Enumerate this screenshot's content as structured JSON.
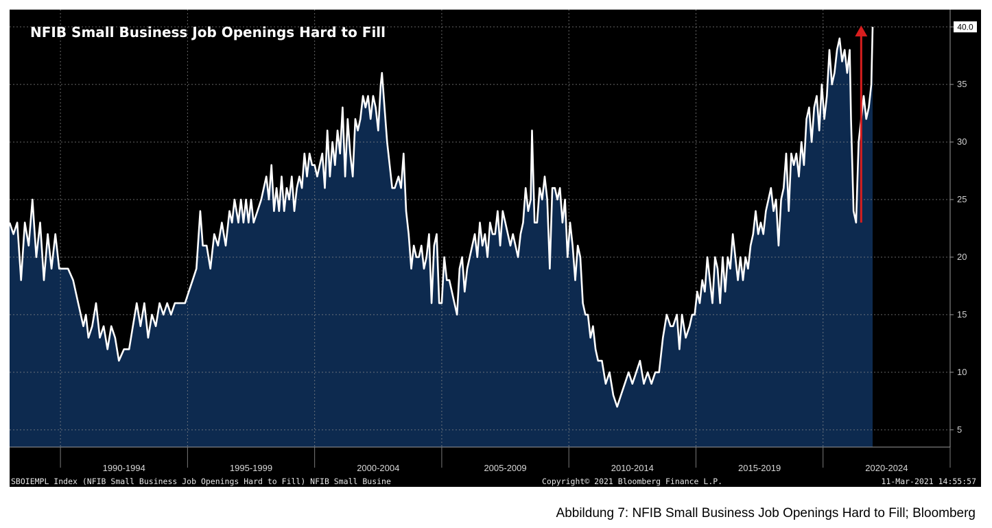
{
  "caption": "Abbildung 7: NFIB Small Business Job Openings Hard to Fill; Bloomberg",
  "footer": {
    "left": "SBOIEMPL Index (NFIB Small Business Job Openings Hard to Fill) NFIB Small Busine",
    "center": "Copyright© 2021 Bloomberg Finance L.P.",
    "right": "11-Mar-2021 14:55:57"
  },
  "colors": {
    "plot_background": "#000000",
    "area_fill": "#0d2a4f",
    "line": "#ffffff",
    "grid": "#8a8a8a",
    "arrow": "#d81e1e",
    "last_value_badge": "#ffffff"
  },
  "chart_data": {
    "type": "area",
    "title": "NFIB Small Business Job Openings Hard to Fill",
    "xlabel": "",
    "ylabel": "",
    "ylim": [
      3.5,
      41.5
    ],
    "xlim": [
      1988.0,
      2025.0
    ],
    "yticks": [
      5,
      10,
      15,
      20,
      25,
      30,
      35,
      40
    ],
    "ytick_labels": [
      "5",
      "10",
      "15",
      "20",
      "25",
      "30",
      "35",
      ""
    ],
    "x_period_labels": [
      {
        "label": "1990-1994",
        "center": 1992.5
      },
      {
        "label": "1995-1999",
        "center": 1997.5
      },
      {
        "label": "2000-2004",
        "center": 2002.5
      },
      {
        "label": "2005-2009",
        "center": 2007.5
      },
      {
        "label": "2010-2014",
        "center": 2012.5
      },
      {
        "label": "2015-2019",
        "center": 2017.5
      },
      {
        "label": "2020-2024",
        "center": 2022.5
      }
    ],
    "x_period_boundaries": [
      1990,
      1995,
      2000,
      2005,
      2010,
      2015,
      2020,
      2025
    ],
    "grid": true,
    "last_value_label": "40.0",
    "annotation": {
      "type": "arrow",
      "x": 2021.5,
      "y_from": 23,
      "y_to": 40
    },
    "series": [
      {
        "values": [
          [
            1988.0,
            23
          ],
          [
            1988.15,
            22
          ],
          [
            1988.3,
            23
          ],
          [
            1988.45,
            18
          ],
          [
            1988.6,
            23
          ],
          [
            1988.75,
            21
          ],
          [
            1988.9,
            25
          ],
          [
            1989.05,
            20
          ],
          [
            1989.2,
            23
          ],
          [
            1989.35,
            18
          ],
          [
            1989.5,
            22
          ],
          [
            1989.65,
            19
          ],
          [
            1989.8,
            22
          ],
          [
            1989.95,
            19
          ],
          [
            1990.1,
            19
          ],
          [
            1990.3,
            19
          ],
          [
            1990.5,
            18
          ],
          [
            1990.7,
            16
          ],
          [
            1990.9,
            14
          ],
          [
            1991.0,
            15
          ],
          [
            1991.1,
            13
          ],
          [
            1991.25,
            14
          ],
          [
            1991.4,
            16
          ],
          [
            1991.55,
            13
          ],
          [
            1991.7,
            14
          ],
          [
            1991.85,
            12
          ],
          [
            1992.0,
            14
          ],
          [
            1992.15,
            13
          ],
          [
            1992.3,
            11
          ],
          [
            1992.5,
            12
          ],
          [
            1992.7,
            12
          ],
          [
            1992.85,
            14
          ],
          [
            1993.0,
            16
          ],
          [
            1993.15,
            14
          ],
          [
            1993.3,
            16
          ],
          [
            1993.45,
            13
          ],
          [
            1993.6,
            15
          ],
          [
            1993.75,
            14
          ],
          [
            1993.9,
            16
          ],
          [
            1994.05,
            15
          ],
          [
            1994.2,
            16
          ],
          [
            1994.35,
            15
          ],
          [
            1994.5,
            16
          ],
          [
            1994.7,
            16
          ],
          [
            1994.9,
            16
          ],
          [
            1995.05,
            17
          ],
          [
            1995.2,
            18
          ],
          [
            1995.35,
            19
          ],
          [
            1995.5,
            24
          ],
          [
            1995.6,
            21
          ],
          [
            1995.75,
            21
          ],
          [
            1995.9,
            19
          ],
          [
            1996.05,
            22
          ],
          [
            1996.2,
            21
          ],
          [
            1996.35,
            23
          ],
          [
            1996.5,
            21
          ],
          [
            1996.65,
            24
          ],
          [
            1996.75,
            23
          ],
          [
            1996.85,
            25
          ],
          [
            1997.0,
            23
          ],
          [
            1997.1,
            25
          ],
          [
            1997.2,
            23
          ],
          [
            1997.3,
            25
          ],
          [
            1997.4,
            23
          ],
          [
            1997.5,
            25
          ],
          [
            1997.6,
            23
          ],
          [
            1997.75,
            24
          ],
          [
            1997.9,
            25
          ],
          [
            1998.0,
            26
          ],
          [
            1998.1,
            27
          ],
          [
            1998.2,
            25
          ],
          [
            1998.3,
            28
          ],
          [
            1998.4,
            24
          ],
          [
            1998.5,
            26
          ],
          [
            1998.6,
            24
          ],
          [
            1998.7,
            27
          ],
          [
            1998.8,
            24
          ],
          [
            1998.9,
            26
          ],
          [
            1999.0,
            25
          ],
          [
            1999.1,
            27
          ],
          [
            1999.2,
            24
          ],
          [
            1999.3,
            26
          ],
          [
            1999.4,
            27
          ],
          [
            1999.5,
            26
          ],
          [
            1999.6,
            29
          ],
          [
            1999.7,
            27
          ],
          [
            1999.8,
            29
          ],
          [
            1999.9,
            28
          ],
          [
            2000.0,
            28
          ],
          [
            2000.1,
            27
          ],
          [
            2000.2,
            28
          ],
          [
            2000.3,
            29
          ],
          [
            2000.4,
            26
          ],
          [
            2000.5,
            31
          ],
          [
            2000.6,
            27
          ],
          [
            2000.7,
            30
          ],
          [
            2000.8,
            28
          ],
          [
            2000.9,
            31
          ],
          [
            2001.0,
            29
          ],
          [
            2001.1,
            33
          ],
          [
            2001.2,
            27
          ],
          [
            2001.3,
            32
          ],
          [
            2001.4,
            29
          ],
          [
            2001.5,
            27
          ],
          [
            2001.6,
            32
          ],
          [
            2001.7,
            31
          ],
          [
            2001.8,
            32
          ],
          [
            2001.9,
            34
          ],
          [
            2002.0,
            33
          ],
          [
            2002.1,
            34
          ],
          [
            2002.2,
            32
          ],
          [
            2002.3,
            34
          ],
          [
            2002.4,
            33
          ],
          [
            2002.5,
            31
          ],
          [
            2002.6,
            35
          ],
          [
            2002.65,
            36
          ],
          [
            2002.75,
            33
          ],
          [
            2002.85,
            30
          ],
          [
            2002.95,
            28
          ],
          [
            2003.05,
            26
          ],
          [
            2003.15,
            26
          ],
          [
            2003.3,
            27
          ],
          [
            2003.4,
            26
          ],
          [
            2003.5,
            29
          ],
          [
            2003.6,
            24
          ],
          [
            2003.7,
            22
          ],
          [
            2003.8,
            19
          ],
          [
            2003.9,
            21
          ],
          [
            2004.0,
            20
          ],
          [
            2004.1,
            20
          ],
          [
            2004.2,
            21
          ],
          [
            2004.3,
            19
          ],
          [
            2004.4,
            20
          ],
          [
            2004.5,
            22
          ],
          [
            2004.6,
            16
          ],
          [
            2004.7,
            21
          ],
          [
            2004.8,
            22
          ],
          [
            2004.9,
            16
          ],
          [
            2005.0,
            16
          ],
          [
            2005.1,
            20
          ],
          [
            2005.2,
            18
          ],
          [
            2005.3,
            18
          ],
          [
            2005.4,
            17
          ],
          [
            2005.5,
            16
          ],
          [
            2005.6,
            15
          ],
          [
            2005.7,
            19
          ],
          [
            2005.8,
            20
          ],
          [
            2005.9,
            17
          ],
          [
            2006.0,
            19
          ],
          [
            2006.1,
            20
          ],
          [
            2006.2,
            21
          ],
          [
            2006.3,
            22
          ],
          [
            2006.4,
            20
          ],
          [
            2006.5,
            23
          ],
          [
            2006.6,
            21
          ],
          [
            2006.7,
            22
          ],
          [
            2006.8,
            20
          ],
          [
            2006.9,
            23
          ],
          [
            2007.0,
            22
          ],
          [
            2007.1,
            22
          ],
          [
            2007.2,
            24
          ],
          [
            2007.3,
            21
          ],
          [
            2007.4,
            24
          ],
          [
            2007.5,
            23
          ],
          [
            2007.6,
            22
          ],
          [
            2007.7,
            21
          ],
          [
            2007.8,
            22
          ],
          [
            2007.9,
            21
          ],
          [
            2008.0,
            20
          ],
          [
            2008.1,
            22
          ],
          [
            2008.2,
            23
          ],
          [
            2008.3,
            26
          ],
          [
            2008.4,
            24
          ],
          [
            2008.5,
            25
          ],
          [
            2008.55,
            31
          ],
          [
            2008.65,
            23
          ],
          [
            2008.75,
            23
          ],
          [
            2008.85,
            26
          ],
          [
            2008.95,
            25
          ],
          [
            2009.05,
            27
          ],
          [
            2009.15,
            25
          ],
          [
            2009.25,
            19
          ],
          [
            2009.35,
            26
          ],
          [
            2009.45,
            26
          ],
          [
            2009.55,
            25
          ],
          [
            2009.65,
            26
          ],
          [
            2009.75,
            23
          ],
          [
            2009.85,
            25
          ],
          [
            2009.95,
            20
          ],
          [
            2010.05,
            23
          ],
          [
            2010.15,
            21
          ],
          [
            2010.25,
            18
          ],
          [
            2010.35,
            21
          ],
          [
            2010.45,
            20
          ],
          [
            2010.55,
            16
          ],
          [
            2010.65,
            15
          ],
          [
            2010.75,
            15
          ],
          [
            2010.85,
            13
          ],
          [
            2010.95,
            14
          ],
          [
            2011.05,
            12
          ],
          [
            2011.15,
            11
          ],
          [
            2011.3,
            11
          ],
          [
            2011.45,
            9
          ],
          [
            2011.6,
            10
          ],
          [
            2011.75,
            8
          ],
          [
            2011.9,
            7
          ],
          [
            2012.05,
            8
          ],
          [
            2012.2,
            9
          ],
          [
            2012.35,
            10
          ],
          [
            2012.5,
            9
          ],
          [
            2012.65,
            10
          ],
          [
            2012.8,
            11
          ],
          [
            2012.95,
            9
          ],
          [
            2013.1,
            10
          ],
          [
            2013.25,
            9
          ],
          [
            2013.4,
            10
          ],
          [
            2013.55,
            10
          ],
          [
            2013.7,
            13
          ],
          [
            2013.85,
            15
          ],
          [
            2014.0,
            14
          ],
          [
            2014.1,
            14
          ],
          [
            2014.25,
            15
          ],
          [
            2014.35,
            12
          ],
          [
            2014.45,
            15
          ],
          [
            2014.6,
            13
          ],
          [
            2014.75,
            14
          ],
          [
            2014.85,
            15
          ],
          [
            2014.95,
            15
          ],
          [
            2015.05,
            17
          ],
          [
            2015.15,
            16
          ],
          [
            2015.25,
            18
          ],
          [
            2015.35,
            17
          ],
          [
            2015.45,
            20
          ],
          [
            2015.55,
            18
          ],
          [
            2015.65,
            16
          ],
          [
            2015.75,
            20
          ],
          [
            2015.85,
            19
          ],
          [
            2015.95,
            16
          ],
          [
            2016.05,
            20
          ],
          [
            2016.15,
            17
          ],
          [
            2016.25,
            20
          ],
          [
            2016.35,
            19
          ],
          [
            2016.45,
            22
          ],
          [
            2016.55,
            20
          ],
          [
            2016.65,
            18
          ],
          [
            2016.75,
            20
          ],
          [
            2016.85,
            18
          ],
          [
            2016.95,
            20
          ],
          [
            2017.05,
            19
          ],
          [
            2017.15,
            21
          ],
          [
            2017.25,
            22
          ],
          [
            2017.35,
            24
          ],
          [
            2017.45,
            22
          ],
          [
            2017.55,
            23
          ],
          [
            2017.65,
            22
          ],
          [
            2017.75,
            24
          ],
          [
            2017.85,
            25
          ],
          [
            2017.95,
            26
          ],
          [
            2018.05,
            24
          ],
          [
            2018.15,
            25
          ],
          [
            2018.25,
            21
          ],
          [
            2018.35,
            25
          ],
          [
            2018.45,
            26
          ],
          [
            2018.55,
            29
          ],
          [
            2018.65,
            24
          ],
          [
            2018.75,
            29
          ],
          [
            2018.85,
            28
          ],
          [
            2018.95,
            29
          ],
          [
            2019.05,
            27
          ],
          [
            2019.15,
            30
          ],
          [
            2019.25,
            28
          ],
          [
            2019.35,
            32
          ],
          [
            2019.45,
            33
          ],
          [
            2019.55,
            30
          ],
          [
            2019.65,
            33
          ],
          [
            2019.75,
            34
          ],
          [
            2019.85,
            31
          ],
          [
            2019.95,
            35
          ],
          [
            2020.05,
            32
          ],
          [
            2020.15,
            34
          ],
          [
            2020.25,
            38
          ],
          [
            2020.35,
            35
          ],
          [
            2020.45,
            36
          ],
          [
            2020.55,
            38
          ],
          [
            2020.65,
            39
          ],
          [
            2020.75,
            37
          ],
          [
            2020.85,
            38
          ],
          [
            2020.95,
            36
          ],
          [
            2021.05,
            38
          ],
          [
            2021.1,
            32
          ],
          [
            2021.2,
            24
          ],
          [
            2021.3,
            23
          ],
          [
            2021.4,
            30
          ],
          [
            2021.5,
            32
          ],
          [
            2021.6,
            34
          ],
          [
            2021.7,
            32
          ],
          [
            2021.8,
            33
          ],
          [
            2021.9,
            35
          ],
          [
            2021.95,
            40
          ]
        ]
      }
    ]
  }
}
